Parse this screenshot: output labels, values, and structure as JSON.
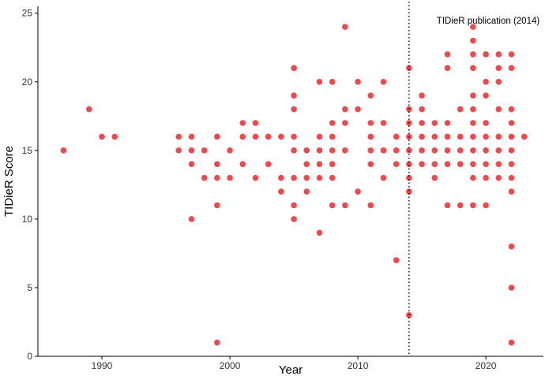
{
  "chart_data": {
    "type": "scatter",
    "xlabel": "Year",
    "ylabel": "TIDieR Score",
    "xlim": [
      1985,
      2024.5
    ],
    "ylim": [
      0,
      25.5
    ],
    "xticks": [
      1990,
      2000,
      2010,
      2020
    ],
    "yticks": [
      0,
      5,
      10,
      15,
      20,
      25
    ],
    "grid": false,
    "point_color": "#F0484B",
    "reference_line": {
      "x": 2014,
      "style": "dotted",
      "label": "TIDieR publication (2014)"
    },
    "points": [
      [
        1987,
        15
      ],
      [
        1989,
        18
      ],
      [
        1990,
        16
      ],
      [
        1991,
        16
      ],
      [
        1996,
        16
      ],
      [
        1996,
        15
      ],
      [
        1997,
        16
      ],
      [
        1997,
        15
      ],
      [
        1997,
        14
      ],
      [
        1997,
        10
      ],
      [
        1998,
        15
      ],
      [
        1998,
        13
      ],
      [
        1999,
        16
      ],
      [
        1999,
        14
      ],
      [
        1999,
        13
      ],
      [
        1999,
        11
      ],
      [
        1999,
        1
      ],
      [
        2000,
        15
      ],
      [
        2000,
        13
      ],
      [
        2001,
        17
      ],
      [
        2001,
        16
      ],
      [
        2001,
        14
      ],
      [
        2002,
        17
      ],
      [
        2002,
        16
      ],
      [
        2002,
        13
      ],
      [
        2003,
        16
      ],
      [
        2003,
        14
      ],
      [
        2004,
        16
      ],
      [
        2004,
        13
      ],
      [
        2004,
        12
      ],
      [
        2005,
        21
      ],
      [
        2005,
        19
      ],
      [
        2005,
        18
      ],
      [
        2005,
        16
      ],
      [
        2005,
        15
      ],
      [
        2005,
        13
      ],
      [
        2005,
        11
      ],
      [
        2005,
        10
      ],
      [
        2006,
        15
      ],
      [
        2006,
        14
      ],
      [
        2006,
        13
      ],
      [
        2006,
        12
      ],
      [
        2007,
        20
      ],
      [
        2007,
        16
      ],
      [
        2007,
        15
      ],
      [
        2007,
        14
      ],
      [
        2007,
        13
      ],
      [
        2007,
        9
      ],
      [
        2008,
        20
      ],
      [
        2008,
        17
      ],
      [
        2008,
        16
      ],
      [
        2008,
        15
      ],
      [
        2008,
        14
      ],
      [
        2008,
        13
      ],
      [
        2008,
        11
      ],
      [
        2009,
        24
      ],
      [
        2009,
        18
      ],
      [
        2009,
        17
      ],
      [
        2009,
        15
      ],
      [
        2009,
        11
      ],
      [
        2010,
        20
      ],
      [
        2010,
        18
      ],
      [
        2010,
        12
      ],
      [
        2011,
        19
      ],
      [
        2011,
        17
      ],
      [
        2011,
        16
      ],
      [
        2011,
        15
      ],
      [
        2011,
        14
      ],
      [
        2011,
        11
      ],
      [
        2012,
        20
      ],
      [
        2012,
        17
      ],
      [
        2012,
        15
      ],
      [
        2012,
        13
      ],
      [
        2013,
        16
      ],
      [
        2013,
        15
      ],
      [
        2013,
        14
      ],
      [
        2013,
        7
      ],
      [
        2014,
        21
      ],
      [
        2014,
        18
      ],
      [
        2014,
        17
      ],
      [
        2014,
        16
      ],
      [
        2014,
        15
      ],
      [
        2014,
        14
      ],
      [
        2014,
        13
      ],
      [
        2014,
        12
      ],
      [
        2014,
        3
      ],
      [
        2015,
        19
      ],
      [
        2015,
        18
      ],
      [
        2015,
        17
      ],
      [
        2015,
        16
      ],
      [
        2015,
        15
      ],
      [
        2015,
        14
      ],
      [
        2016,
        17
      ],
      [
        2016,
        16
      ],
      [
        2016,
        15
      ],
      [
        2016,
        14
      ],
      [
        2016,
        13
      ],
      [
        2017,
        22
      ],
      [
        2017,
        21
      ],
      [
        2017,
        17
      ],
      [
        2017,
        16
      ],
      [
        2017,
        15
      ],
      [
        2017,
        14
      ],
      [
        2017,
        11
      ],
      [
        2018,
        18
      ],
      [
        2018,
        16
      ],
      [
        2018,
        15
      ],
      [
        2018,
        14
      ],
      [
        2018,
        11
      ],
      [
        2019,
        24
      ],
      [
        2019,
        23
      ],
      [
        2019,
        22
      ],
      [
        2019,
        21
      ],
      [
        2019,
        19
      ],
      [
        2019,
        18
      ],
      [
        2019,
        17
      ],
      [
        2019,
        16
      ],
      [
        2019,
        15
      ],
      [
        2019,
        14
      ],
      [
        2019,
        13
      ],
      [
        2019,
        11
      ],
      [
        2020,
        22
      ],
      [
        2020,
        20
      ],
      [
        2020,
        19
      ],
      [
        2020,
        17
      ],
      [
        2020,
        16
      ],
      [
        2020,
        15
      ],
      [
        2020,
        14
      ],
      [
        2020,
        13
      ],
      [
        2020,
        11
      ],
      [
        2021,
        22
      ],
      [
        2021,
        21
      ],
      [
        2021,
        20
      ],
      [
        2021,
        18
      ],
      [
        2021,
        16
      ],
      [
        2021,
        15
      ],
      [
        2021,
        14
      ],
      [
        2021,
        13
      ],
      [
        2022,
        22
      ],
      [
        2022,
        21
      ],
      [
        2022,
        18
      ],
      [
        2022,
        17
      ],
      [
        2022,
        16
      ],
      [
        2022,
        15
      ],
      [
        2022,
        14
      ],
      [
        2022,
        13
      ],
      [
        2022,
        12
      ],
      [
        2022,
        8
      ],
      [
        2022,
        5
      ],
      [
        2022,
        1
      ],
      [
        2023,
        16
      ]
    ]
  }
}
